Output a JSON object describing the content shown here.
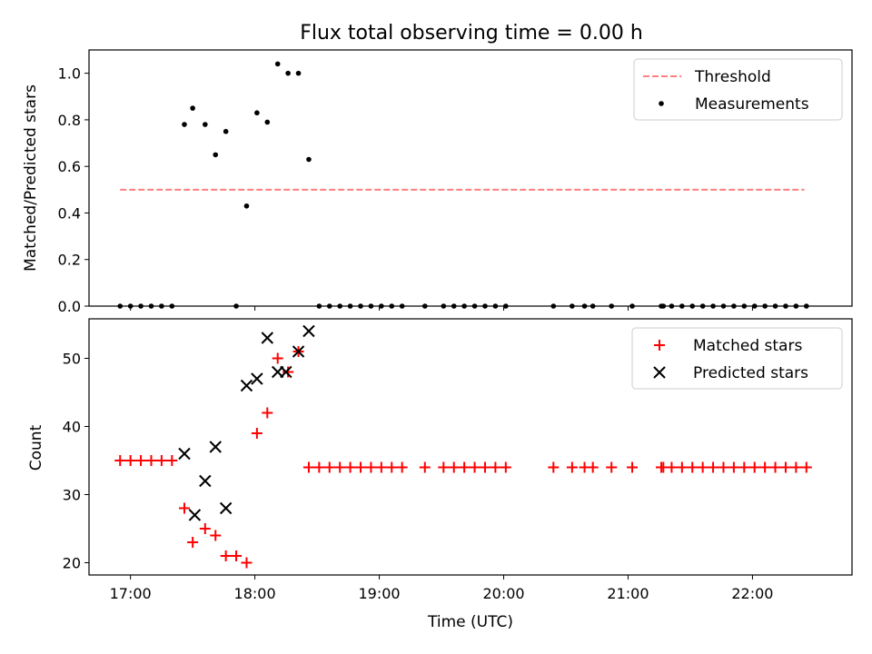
{
  "chart_data": [
    {
      "type": "scatter",
      "title": "Flux total observing time = 0.00 h",
      "xlabel": "",
      "ylabel": "Matched/Predicted stars",
      "xlim": [
        "16:40",
        "22:48"
      ],
      "ylim": [
        0,
        1.1
      ],
      "yticks": [
        "0.0",
        "0.2",
        "0.4",
        "0.6",
        "0.8",
        "1.0"
      ],
      "threshold": {
        "name": "Threshold",
        "y": 0.5,
        "x_start": "16:55",
        "x_end": "22:25",
        "color": "#ff7f7f",
        "style": "dashed"
      },
      "series": [
        {
          "name": "Measurements",
          "marker": "dot",
          "color": "#000000",
          "points": [
            [
              "16:55",
              0.0
            ],
            [
              "17:00",
              0.0
            ],
            [
              "17:05",
              0.0
            ],
            [
              "17:10",
              0.0
            ],
            [
              "17:15",
              0.0
            ],
            [
              "17:20",
              0.0
            ],
            [
              "17:26",
              0.78
            ],
            [
              "17:30",
              0.85
            ],
            [
              "17:36",
              0.78
            ],
            [
              "17:41",
              0.65
            ],
            [
              "17:46",
              0.75
            ],
            [
              "17:51",
              0.0
            ],
            [
              "17:56",
              0.43
            ],
            [
              "18:01",
              0.83
            ],
            [
              "18:06",
              0.79
            ],
            [
              "18:11",
              1.04
            ],
            [
              "18:16",
              1.0
            ],
            [
              "18:21",
              1.0
            ],
            [
              "18:26",
              0.63
            ],
            [
              "18:31",
              0.0
            ],
            [
              "18:36",
              0.0
            ],
            [
              "18:41",
              0.0
            ],
            [
              "18:46",
              0.0
            ],
            [
              "18:51",
              0.0
            ],
            [
              "18:56",
              0.0
            ],
            [
              "19:01",
              0.0
            ],
            [
              "19:06",
              0.0
            ],
            [
              "19:11",
              0.0
            ],
            [
              "19:22",
              0.0
            ],
            [
              "19:31",
              0.0
            ],
            [
              "19:36",
              0.0
            ],
            [
              "19:41",
              0.0
            ],
            [
              "19:46",
              0.0
            ],
            [
              "19:51",
              0.0
            ],
            [
              "19:56",
              0.0
            ],
            [
              "20:01",
              0.0
            ],
            [
              "20:24",
              0.0
            ],
            [
              "20:33",
              0.0
            ],
            [
              "20:39",
              0.0
            ],
            [
              "20:43",
              0.0
            ],
            [
              "20:52",
              0.0
            ],
            [
              "21:02",
              0.0
            ],
            [
              "21:16",
              0.0
            ],
            [
              "21:17",
              0.0
            ],
            [
              "21:21",
              0.0
            ],
            [
              "21:26",
              0.0
            ],
            [
              "21:31",
              0.0
            ],
            [
              "21:36",
              0.0
            ],
            [
              "21:41",
              0.0
            ],
            [
              "21:46",
              0.0
            ],
            [
              "21:51",
              0.0
            ],
            [
              "21:56",
              0.0
            ],
            [
              "22:01",
              0.0
            ],
            [
              "22:06",
              0.0
            ],
            [
              "22:11",
              0.0
            ],
            [
              "22:16",
              0.0
            ],
            [
              "22:21",
              0.0
            ],
            [
              "22:26",
              0.0
            ]
          ]
        }
      ],
      "legend": {
        "position": "top-right",
        "entries": [
          "Threshold",
          "Measurements"
        ]
      },
      "grid": false
    },
    {
      "type": "scatter",
      "title": "",
      "xlabel": "Time (UTC)",
      "ylabel": "Count",
      "xlim": [
        "16:40",
        "22:48"
      ],
      "ylim": [
        18.2,
        55.8
      ],
      "xticks": [
        "17:00",
        "18:00",
        "19:00",
        "20:00",
        "21:00",
        "22:00"
      ],
      "yticks": [
        "20",
        "30",
        "40",
        "50"
      ],
      "series": [
        {
          "name": "Matched stars",
          "marker": "plus",
          "color": "#ff0000",
          "points": [
            [
              "16:55",
              35
            ],
            [
              "17:00",
              35
            ],
            [
              "17:05",
              35
            ],
            [
              "17:10",
              35
            ],
            [
              "17:15",
              35
            ],
            [
              "17:20",
              35
            ],
            [
              "17:26",
              28
            ],
            [
              "17:30",
              23
            ],
            [
              "17:36",
              25
            ],
            [
              "17:41",
              24
            ],
            [
              "17:46",
              21
            ],
            [
              "17:51",
              21
            ],
            [
              "17:56",
              20
            ],
            [
              "18:01",
              39
            ],
            [
              "18:06",
              42
            ],
            [
              "18:11",
              50
            ],
            [
              "18:16",
              48
            ],
            [
              "18:21",
              51
            ],
            [
              "18:26",
              34
            ],
            [
              "18:31",
              34
            ],
            [
              "18:36",
              34
            ],
            [
              "18:41",
              34
            ],
            [
              "18:46",
              34
            ],
            [
              "18:51",
              34
            ],
            [
              "18:56",
              34
            ],
            [
              "19:01",
              34
            ],
            [
              "19:06",
              34
            ],
            [
              "19:11",
              34
            ],
            [
              "19:22",
              34
            ],
            [
              "19:31",
              34
            ],
            [
              "19:36",
              34
            ],
            [
              "19:41",
              34
            ],
            [
              "19:46",
              34
            ],
            [
              "19:51",
              34
            ],
            [
              "19:56",
              34
            ],
            [
              "20:01",
              34
            ],
            [
              "20:24",
              34
            ],
            [
              "20:33",
              34
            ],
            [
              "20:39",
              34
            ],
            [
              "20:43",
              34
            ],
            [
              "20:52",
              34
            ],
            [
              "21:02",
              34
            ],
            [
              "21:16",
              34
            ],
            [
              "21:17",
              34
            ],
            [
              "21:21",
              34
            ],
            [
              "21:26",
              34
            ],
            [
              "21:31",
              34
            ],
            [
              "21:36",
              34
            ],
            [
              "21:41",
              34
            ],
            [
              "21:46",
              34
            ],
            [
              "21:51",
              34
            ],
            [
              "21:56",
              34
            ],
            [
              "22:01",
              34
            ],
            [
              "22:06",
              34
            ],
            [
              "22:11",
              34
            ],
            [
              "22:16",
              34
            ],
            [
              "22:21",
              34
            ],
            [
              "22:26",
              34
            ]
          ]
        },
        {
          "name": "Predicted stars",
          "marker": "x",
          "color": "#000000",
          "points": [
            [
              "17:26",
              36
            ],
            [
              "17:31",
              27
            ],
            [
              "17:36",
              32
            ],
            [
              "17:41",
              37
            ],
            [
              "17:46",
              28
            ],
            [
              "17:56",
              46
            ],
            [
              "18:01",
              47
            ],
            [
              "18:06",
              53
            ],
            [
              "18:11",
              48
            ],
            [
              "18:15",
              48
            ],
            [
              "18:21",
              51
            ],
            [
              "18:26",
              54
            ]
          ]
        }
      ],
      "legend": {
        "position": "top-right",
        "entries": [
          "Matched stars",
          "Predicted stars"
        ]
      },
      "grid": false
    }
  ]
}
